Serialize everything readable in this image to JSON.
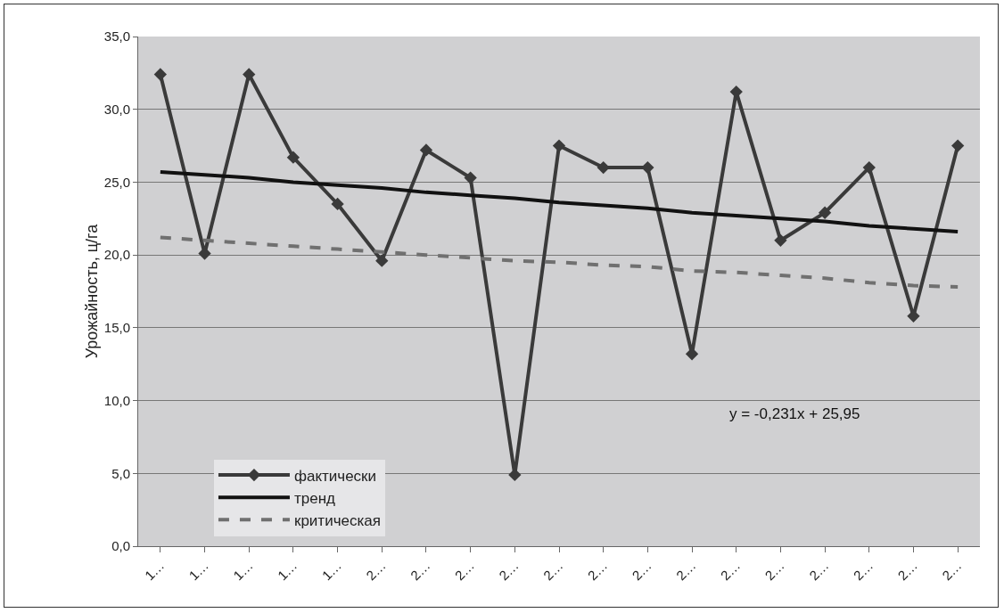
{
  "chart_data": {
    "type": "line",
    "ylabel": "Урожайность, ц/га",
    "categories": [
      "1…",
      "1…",
      "1…",
      "1…",
      "1…",
      "2…",
      "2…",
      "2…",
      "2…",
      "2…",
      "2…",
      "2…",
      "2…",
      "2…",
      "2…",
      "2…",
      "2…",
      "2…",
      "2…"
    ],
    "series": [
      {
        "name": "фактически",
        "color": "#3a3a3a",
        "marker": "diamond",
        "line_style": "solid",
        "values": [
          32.4,
          20.1,
          32.4,
          26.7,
          23.5,
          19.6,
          27.2,
          25.3,
          4.9,
          27.5,
          26.0,
          26.0,
          13.2,
          31.2,
          21.0,
          22.9,
          26.0,
          15.8,
          27.5
        ]
      },
      {
        "name": "тренд",
        "color": "#111111",
        "marker": "none",
        "line_style": "solid",
        "values": [
          25.7,
          25.5,
          25.3,
          25.0,
          24.8,
          24.6,
          24.3,
          24.1,
          23.9,
          23.6,
          23.4,
          23.2,
          22.9,
          22.7,
          22.5,
          22.3,
          22.0,
          21.8,
          21.6
        ]
      },
      {
        "name": "критическая",
        "color": "#707070",
        "marker": "none",
        "line_style": "dashed",
        "values": [
          21.2,
          21.0,
          20.8,
          20.6,
          20.4,
          20.2,
          20.0,
          19.8,
          19.6,
          19.5,
          19.3,
          19.2,
          18.9,
          18.8,
          18.6,
          18.4,
          18.1,
          17.9,
          17.8
        ]
      }
    ],
    "ylim": [
      0,
      35
    ],
    "yticks": [
      {
        "value": 0,
        "label": "0,0"
      },
      {
        "value": 5,
        "label": "5,0"
      },
      {
        "value": 10,
        "label": "10,0"
      },
      {
        "value": 15,
        "label": "15,0"
      },
      {
        "value": 20,
        "label": "20,0"
      },
      {
        "value": 25,
        "label": "25,0"
      },
      {
        "value": 30,
        "label": "30,0"
      },
      {
        "value": 35,
        "label": "35,0"
      }
    ],
    "grid": "y",
    "legend": "bottom left",
    "annotations": [
      "y = -0,231x + 25,95"
    ]
  }
}
